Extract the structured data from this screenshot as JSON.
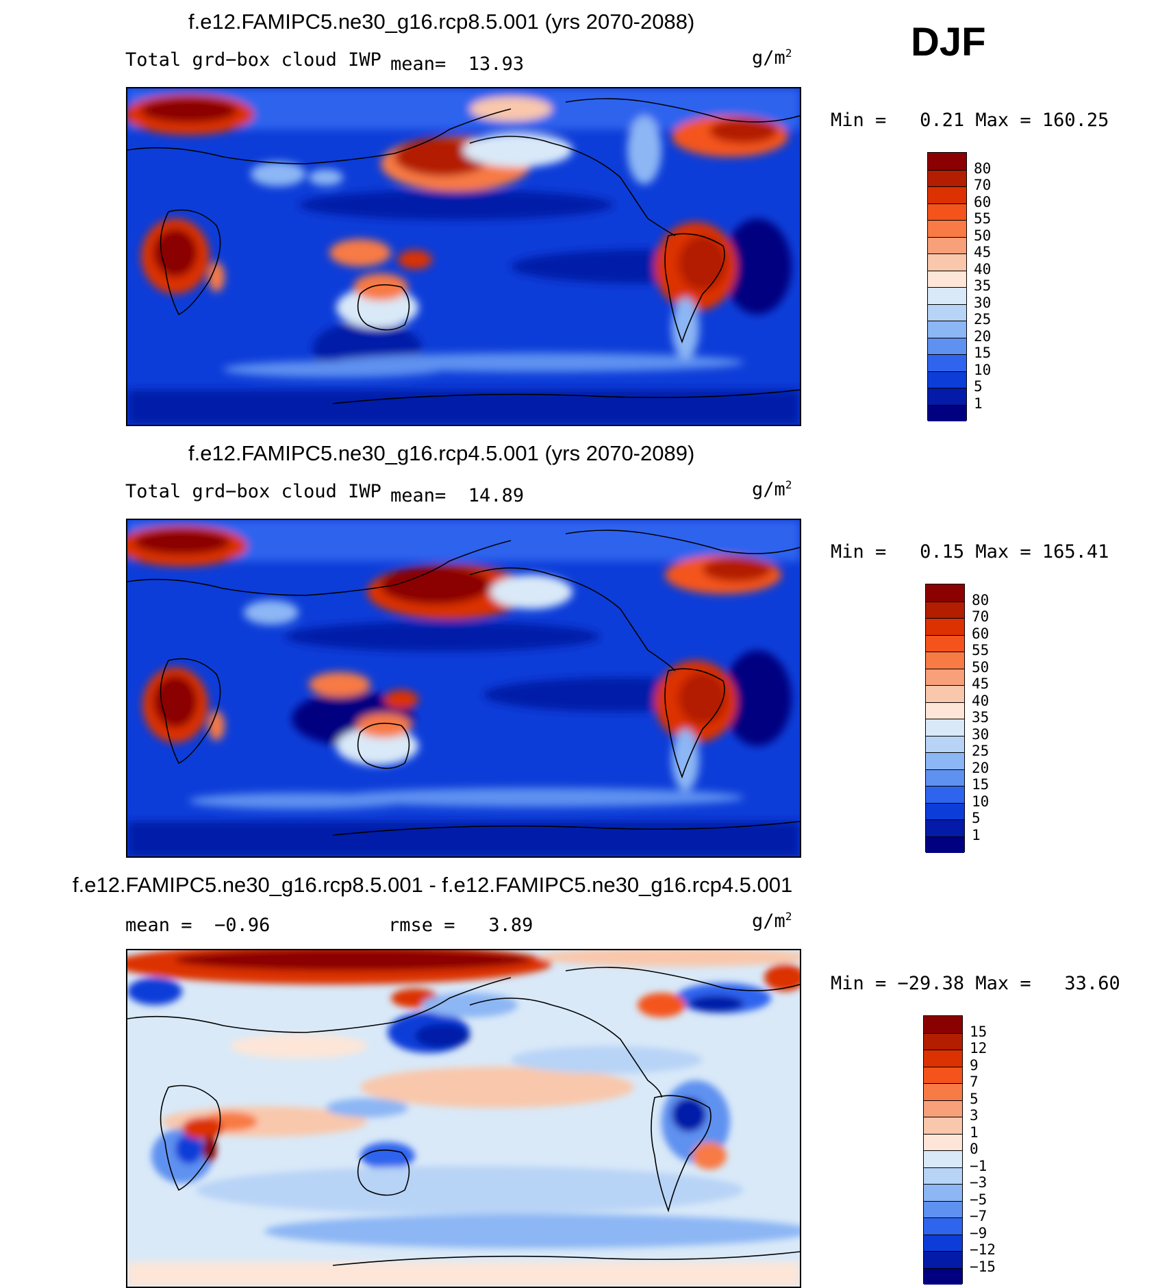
{
  "season": "DJF",
  "units_base": "g/m",
  "units_exp": "2",
  "panels": [
    {
      "title": "f.e12.FAMIPC5.ne30_g16.rcp8.5.001 (yrs 2070-2088)",
      "variable": "Total grd−box cloud IWP",
      "mean_label": "mean=",
      "mean_value": "13.93",
      "min_label": "Min =",
      "min_value": "0.21",
      "max_label": "Max =",
      "max_value": "160.25",
      "levels": [
        "80",
        "70",
        "60",
        "55",
        "50",
        "45",
        "40",
        "35",
        "30",
        "25",
        "20",
        "15",
        "10",
        "5",
        "1"
      ],
      "colors": [
        "#8b0000",
        "#b31d00",
        "#dc3100",
        "#f4541c",
        "#f87a45",
        "#f7a07a",
        "#f9c7ab",
        "#fde6d8",
        "#d9e9f8",
        "#b7d3f6",
        "#8cb6f4",
        "#5f91f0",
        "#2f64ee",
        "#0d3dd8",
        "#041aa8",
        "#000080"
      ]
    },
    {
      "title": "f.e12.FAMIPC5.ne30_g16.rcp4.5.001 (yrs 2070-2089)",
      "variable": "Total grd−box cloud IWP",
      "mean_label": "mean=",
      "mean_value": "14.89",
      "min_label": "Min =",
      "min_value": "0.15",
      "max_label": "Max =",
      "max_value": "165.41",
      "levels": [
        "80",
        "70",
        "60",
        "55",
        "50",
        "45",
        "40",
        "35",
        "30",
        "25",
        "20",
        "15",
        "10",
        "5",
        "1"
      ],
      "colors": [
        "#8b0000",
        "#b31d00",
        "#dc3100",
        "#f4541c",
        "#f87a45",
        "#f7a07a",
        "#f9c7ab",
        "#fde6d8",
        "#d9e9f8",
        "#b7d3f6",
        "#8cb6f4",
        "#5f91f0",
        "#2f64ee",
        "#0d3dd8",
        "#041aa8",
        "#000080"
      ]
    },
    {
      "title": "f.e12.FAMIPC5.ne30_g16.rcp8.5.001 - f.e12.FAMIPC5.ne30_g16.rcp4.5.001",
      "variable": "",
      "mean_label": "mean =",
      "mean_value": "−0.96",
      "rmse_label": "rmse =",
      "rmse_value": "3.89",
      "min_label": "Min =",
      "min_value": "−29.38",
      "max_label": "Max =",
      "max_value": "33.60",
      "levels": [
        "15",
        "12",
        "9",
        "7",
        "5",
        "3",
        "1",
        "0",
        "−1",
        "−3",
        "−5",
        "−7",
        "−9",
        "−12",
        "−15"
      ],
      "colors": [
        "#8b0000",
        "#b31d00",
        "#dc3100",
        "#f4541c",
        "#f87a45",
        "#f7a07a",
        "#f9c7ab",
        "#fde6d8",
        "#d9e9f8",
        "#b7d3f6",
        "#8cb6f4",
        "#5f91f0",
        "#2f64ee",
        "#0d3dd8",
        "#041aa8",
        "#000080"
      ]
    }
  ]
}
